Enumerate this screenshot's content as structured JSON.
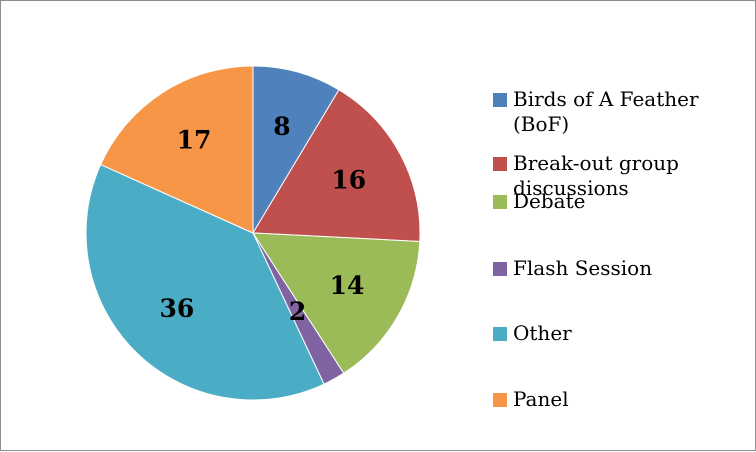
{
  "chart_data": {
    "type": "pie",
    "categories": [
      "Birds of A Feather (BoF)",
      "Break-out group discussions",
      "Debate",
      "Flash Session",
      "Other",
      "Panel"
    ],
    "values": [
      8,
      16,
      14,
      2,
      36,
      17
    ],
    "colors": [
      "#4f81bd",
      "#c0504d",
      "#9bbb59",
      "#8064a2",
      "#4bacc6",
      "#f79646"
    ],
    "legend": "right"
  }
}
